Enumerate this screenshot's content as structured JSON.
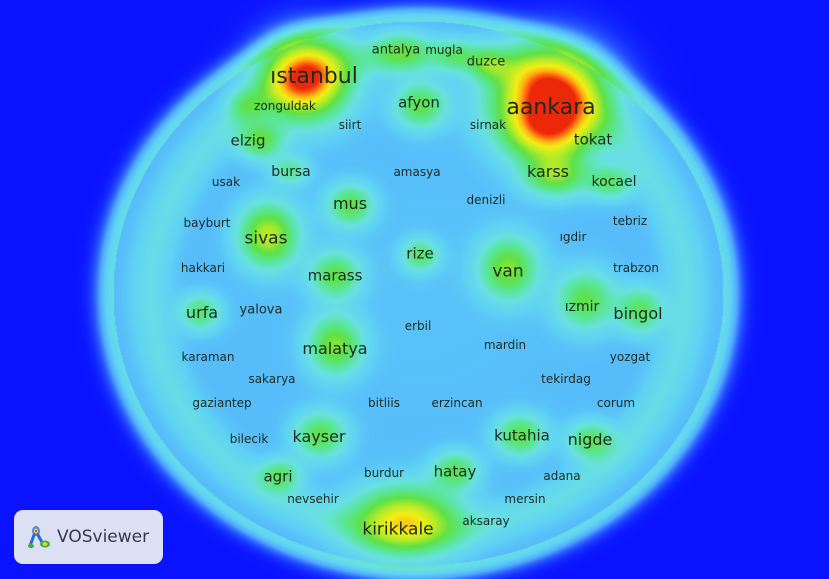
{
  "app": {
    "logo_text": "VOSviewer"
  },
  "colors": {
    "background": "#0a13ff",
    "label": "#1e2a22"
  },
  "terms": [
    {
      "label": "ıstanbul",
      "weight": 1.0
    },
    {
      "label": "aankara",
      "weight": 1.0
    },
    {
      "label": "antalya",
      "weight": 0.3
    },
    {
      "label": "mugla",
      "weight": 0.2
    },
    {
      "label": "duzce",
      "weight": 0.3
    },
    {
      "label": "zonguldak",
      "weight": 0.25
    },
    {
      "label": "afyon",
      "weight": 0.35
    },
    {
      "label": "siirt",
      "weight": 0.2
    },
    {
      "label": "sirnak",
      "weight": 0.2
    },
    {
      "label": "tokat",
      "weight": 0.35
    },
    {
      "label": "elzig",
      "weight": 0.4
    },
    {
      "label": "karss",
      "weight": 0.4
    },
    {
      "label": "kocael",
      "weight": 0.3
    },
    {
      "label": "usak",
      "weight": 0.2
    },
    {
      "label": "bursa",
      "weight": 0.3
    },
    {
      "label": "amasya",
      "weight": 0.2
    },
    {
      "label": "denizli",
      "weight": 0.2
    },
    {
      "label": "mus",
      "weight": 0.35
    },
    {
      "label": "bayburt",
      "weight": 0.2
    },
    {
      "label": "sivas",
      "weight": 0.6
    },
    {
      "label": "tebriz",
      "weight": 0.2
    },
    {
      "label": "ıgdir",
      "weight": 0.2
    },
    {
      "label": "rize",
      "weight": 0.3
    },
    {
      "label": "hakkari",
      "weight": 0.2
    },
    {
      "label": "marass",
      "weight": 0.4
    },
    {
      "label": "van",
      "weight": 0.45
    },
    {
      "label": "trabzon",
      "weight": 0.2
    },
    {
      "label": "urfa",
      "weight": 0.35
    },
    {
      "label": "yalova",
      "weight": 0.2
    },
    {
      "label": "ızmir",
      "weight": 0.3
    },
    {
      "label": "bingol",
      "weight": 0.4
    },
    {
      "label": "erbil",
      "weight": 0.2
    },
    {
      "label": "mardin",
      "weight": 0.2
    },
    {
      "label": "malatya",
      "weight": 0.5
    },
    {
      "label": "karaman",
      "weight": 0.2
    },
    {
      "label": "yozgat",
      "weight": 0.2
    },
    {
      "label": "sakarya",
      "weight": 0.2
    },
    {
      "label": "tekirdag",
      "weight": 0.2
    },
    {
      "label": "gaziantep",
      "weight": 0.2
    },
    {
      "label": "bitliis",
      "weight": 0.2
    },
    {
      "label": "erzincan",
      "weight": 0.2
    },
    {
      "label": "corum",
      "weight": 0.2
    },
    {
      "label": "bilecik",
      "weight": 0.2
    },
    {
      "label": "kayser",
      "weight": 0.4
    },
    {
      "label": "kutahia",
      "weight": 0.35
    },
    {
      "label": "nigde",
      "weight": 0.35
    },
    {
      "label": "agri",
      "weight": 0.35
    },
    {
      "label": "burdur",
      "weight": 0.2
    },
    {
      "label": "hatay",
      "weight": 0.35
    },
    {
      "label": "adana",
      "weight": 0.2
    },
    {
      "label": "nevsehir",
      "weight": 0.2
    },
    {
      "label": "mersin",
      "weight": 0.2
    },
    {
      "label": "aksaray",
      "weight": 0.2
    },
    {
      "label": "kirikkale",
      "weight": 0.65
    }
  ]
}
